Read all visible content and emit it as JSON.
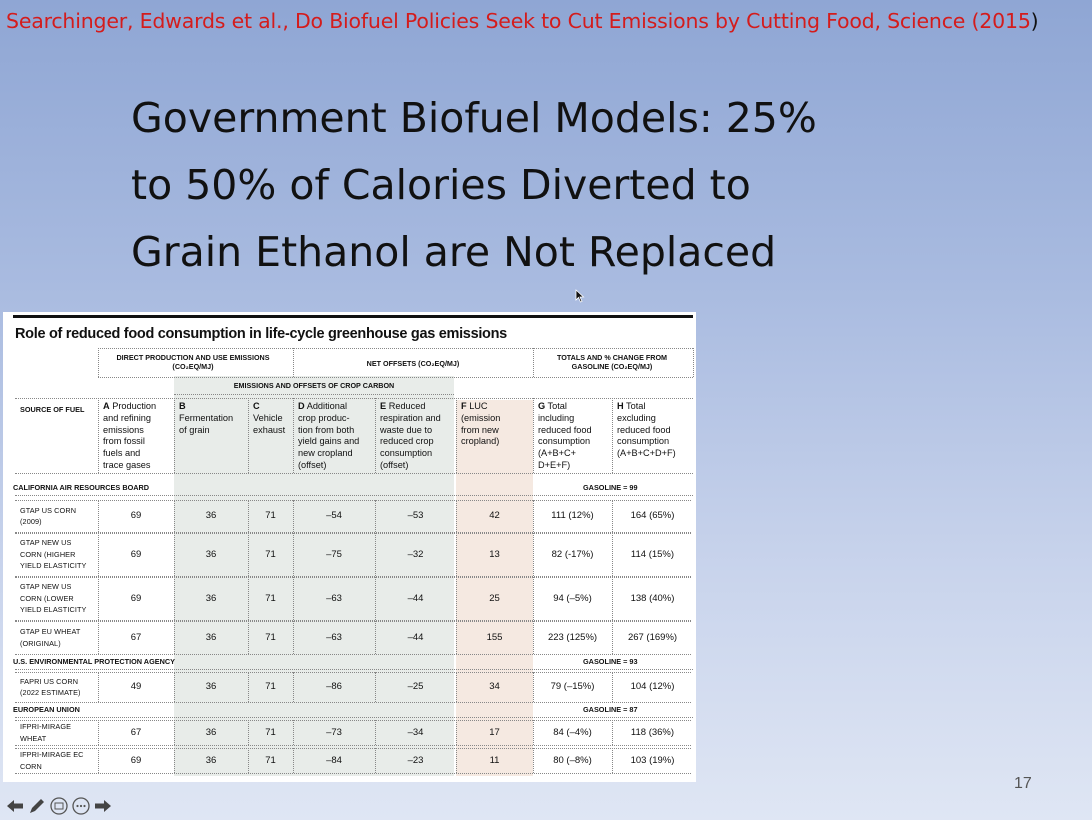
{
  "slide": {
    "citation_main": "Searchinger, Edwards et al., Do Biofuel Policies Seek to Cut Emissions by Cutting Food, Science (2015",
    "citation_close": ")",
    "title_lines": [
      "Government Biofuel Models:  25%",
      "to 50% of Calories Diverted to",
      "Grain Ethanol are Not Replaced"
    ],
    "slide_number": "17"
  },
  "figure": {
    "title": "Role of reduced food consumption in life-cycle greenhouse gas emissions",
    "group_headers": {
      "direct": [
        "DIRECT PRODUCTION AND USE EMISSIONS",
        "(CO₂EQ/MJ)"
      ],
      "net_offsets": "NET OFFSETS (CO₂EQ/MJ)",
      "totals": [
        "TOTALS AND % CHANGE FROM",
        "GASOLINE (CO₂EQ/MJ)"
      ],
      "crop_carbon": "EMISSIONS AND OFFSETS OF CROP CARBON"
    },
    "source_header": "SOURCE OF FUEL",
    "columns": [
      {
        "letter": "A",
        "lines": [
          "Production",
          "and refining",
          "emissions",
          "from fossil",
          "fuels and",
          "trace gases"
        ]
      },
      {
        "letter": "B",
        "lines": [
          "",
          "Fermentation",
          "of grain"
        ]
      },
      {
        "letter": "C",
        "lines": [
          "",
          "Vehicle",
          "exhaust"
        ]
      },
      {
        "letter": "D",
        "lines": [
          "Additional",
          "crop produc-",
          "tion from both",
          "yield gains and",
          "new cropland",
          "(offset)"
        ]
      },
      {
        "letter": "E",
        "lines": [
          "Reduced",
          "respiration and",
          "waste due to",
          "reduced crop",
          "consumption",
          "(offset)"
        ]
      },
      {
        "letter": "F",
        "lines": [
          "LUC",
          "(emission",
          "from new",
          "cropland)"
        ]
      },
      {
        "letter": "G",
        "lines": [
          "Total",
          "including",
          "reduced food",
          "consumption",
          "(A+B+C+",
          "D+E+F)"
        ]
      },
      {
        "letter": "H",
        "lines": [
          "Total",
          "excluding",
          "reduced food",
          "consumption",
          "(A+B+C+D+F)"
        ]
      }
    ],
    "sections": [
      {
        "name": "CALIFORNIA AIR RESOURCES BOARD",
        "gasoline": "GASOLINE = 99",
        "rows": [
          {
            "source": [
              "GTAP US CORN",
              "(2009)"
            ],
            "values": [
              "69",
              "36",
              "71",
              "–54",
              "–53",
              "42",
              "111 (12%)",
              "164 (65%)"
            ]
          },
          {
            "source": [
              "GTAP NEW US",
              "CORN (HIGHER",
              "YIELD ELASTICITY"
            ],
            "values": [
              "69",
              "36",
              "71",
              "–75",
              "–32",
              "13",
              "82 (-17%)",
              "114 (15%)"
            ]
          },
          {
            "source": [
              "GTAP NEW US",
              "CORN (LOWER",
              "YIELD ELASTICITY"
            ],
            "values": [
              "69",
              "36",
              "71",
              "–63",
              "–44",
              "25",
              "94 (–5%)",
              "138 (40%)"
            ]
          },
          {
            "source": [
              "GTAP EU WHEAT",
              "(ORIGINAL)"
            ],
            "values": [
              "67",
              "36",
              "71",
              "–63",
              "–44",
              "155",
              "223 (125%)",
              "267 (169%)"
            ]
          }
        ]
      },
      {
        "name": "U.S. ENVIRONMENTAL PROTECTION AGENCY",
        "gasoline": "GASOLINE = 93",
        "rows": [
          {
            "source": [
              "FAPRI US CORN",
              "(2022 ESTIMATE)"
            ],
            "values": [
              "49",
              "36",
              "71",
              "–86",
              "–25",
              "34",
              "79 (–15%)",
              "104 (12%)"
            ]
          }
        ]
      },
      {
        "name": "EUROPEAN UNION",
        "gasoline": "GASOLINE = 87",
        "rows": [
          {
            "source": [
              "IFPRI-MIRAGE",
              "WHEAT"
            ],
            "values": [
              "67",
              "36",
              "71",
              "–73",
              "–34",
              "17",
              "84 (–4%)",
              "118 (36%)"
            ]
          },
          {
            "source": [
              "IFPRI-MIRAGE EC",
              "CORN"
            ],
            "values": [
              "69",
              "36",
              "71",
              "–84",
              "–23",
              "11",
              "80 (–8%)",
              "103 (19%)"
            ]
          }
        ]
      }
    ]
  },
  "nav": {
    "icons": [
      "arrow-left-icon",
      "pen-icon",
      "slides-icon",
      "more-icon",
      "arrow-right-icon"
    ]
  }
}
